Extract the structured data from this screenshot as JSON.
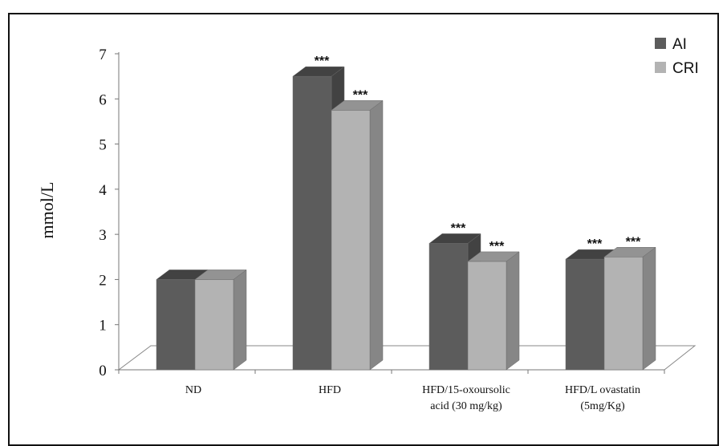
{
  "chart_data": {
    "type": "bar",
    "title": "",
    "xlabel": "",
    "ylabel": "mmol/L",
    "ylim": [
      0,
      7
    ],
    "yticks": [
      0,
      1,
      2,
      3,
      4,
      5,
      6,
      7
    ],
    "categories": [
      [
        "ND"
      ],
      [
        "HFD"
      ],
      [
        "HFD/15-oxoursolic",
        "acid (30 mg/kg)"
      ],
      [
        "HFD/L ovastatin",
        "(5mg/Kg)"
      ]
    ],
    "series": [
      {
        "name": "AI",
        "color": "#5c5c5c",
        "values": [
          2.0,
          6.5,
          2.8,
          2.45
        ],
        "annotations": [
          "",
          "***",
          "***",
          "***"
        ]
      },
      {
        "name": "CRI",
        "color": "#b3b3b3",
        "values": [
          2.0,
          5.75,
          2.4,
          2.5
        ],
        "annotations": [
          "",
          "***",
          "***",
          "***"
        ]
      }
    ],
    "legend": "top-right",
    "grid": false
  }
}
